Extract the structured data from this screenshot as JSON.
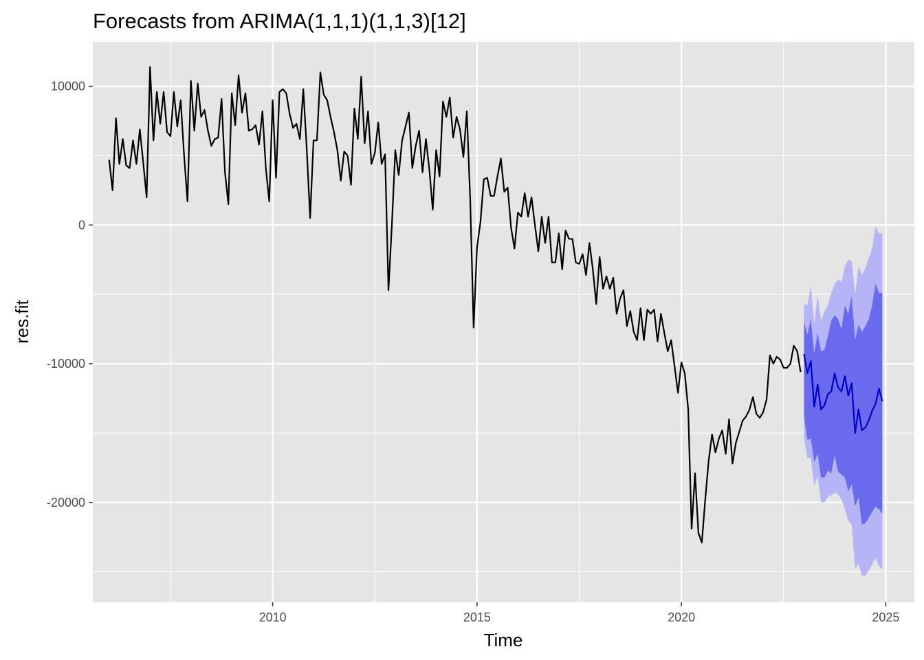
{
  "chart_data": {
    "type": "line",
    "title": "Forecasts from ARIMA(1,1,1)(1,1,3)[12]",
    "xlabel": "Time",
    "ylabel": "res.fit",
    "xlim": [
      2005.6,
      2025.7
    ],
    "ylim": [
      -27200,
      13200
    ],
    "x_ticks": [
      2010,
      2015,
      2020,
      2025
    ],
    "x_tick_labels": [
      "2010",
      "2015",
      "2020",
      "2025"
    ],
    "y_ticks": [
      -20000,
      -10000,
      0,
      10000
    ],
    "y_tick_labels": [
      "-20000",
      "-10000",
      "0",
      "10000"
    ],
    "grid": true,
    "legend": "none",
    "colors": {
      "panel": "#e5e5e5",
      "grid": "#ffffff",
      "history": "#000000",
      "forecast": "#0000cc",
      "interval_80": "#6a6aee",
      "interval_95": "#b4b4f6"
    },
    "history": {
      "start": 2006.0,
      "frequency": 12,
      "values": [
        4700,
        2500,
        7700,
        4400,
        6200,
        4300,
        4100,
        6100,
        4400,
        6900,
        4500,
        2000,
        11400,
        6100,
        9600,
        7300,
        9600,
        6700,
        6400,
        9600,
        7100,
        9000,
        5000,
        1700,
        10400,
        6800,
        10200,
        7800,
        8300,
        6800,
        5700,
        6200,
        6300,
        9100,
        3800,
        1500,
        9500,
        7200,
        10800,
        8100,
        9500,
        6800,
        6900,
        7200,
        5800,
        8200,
        4100,
        1700,
        9000,
        3400,
        9600,
        9800,
        9500,
        8000,
        7000,
        7300,
        6200,
        9800,
        5500,
        500,
        6100,
        6100,
        11000,
        9400,
        9000,
        7800,
        6700,
        5400,
        3200,
        5300,
        5000,
        2900,
        8400,
        6200,
        10700,
        5900,
        8200,
        4400,
        5200,
        7400,
        4400,
        5100,
        -4700,
        0,
        5400,
        3600,
        6100,
        7100,
        8100,
        4100,
        5700,
        6800,
        3800,
        6200,
        4000,
        1100,
        5400,
        3500,
        8900,
        7800,
        9200,
        6300,
        7800,
        6900,
        4900,
        8200,
        1800,
        -7400,
        -1600,
        200,
        3300,
        3400,
        2100,
        2100,
        3500,
        4800,
        2400,
        2700,
        -200,
        -1700,
        900,
        600,
        2300,
        600,
        2000,
        0,
        -1900,
        600,
        -1300,
        600,
        -2700,
        -2700,
        -600,
        -3200,
        -400,
        -1000,
        -1000,
        -2700,
        -2800,
        -2100,
        -3600,
        -1300,
        -3200,
        -5700,
        -2300,
        -4600,
        -3700,
        -4600,
        -3800,
        -6400,
        -5300,
        -4700,
        -7300,
        -6200,
        -7700,
        -8300,
        -6000,
        -8300,
        -6100,
        -6400,
        -6100,
        -8400,
        -6400,
        -7800,
        -9100,
        -8300,
        -10200,
        -12100,
        -9900,
        -10700,
        -13300,
        -21900,
        -17900,
        -22200,
        -22900,
        -19800,
        -17000,
        -15100,
        -16400,
        -15400,
        -14800,
        -16500,
        -14000,
        -17200,
        -15700,
        -14900,
        -14100,
        -13800,
        -13300,
        -12400,
        -13600,
        -13900,
        -13500,
        -12600,
        -9400,
        -10000,
        -9500,
        -9700,
        -10300,
        -10300,
        -10000,
        -8700,
        -9100,
        -10600
      ]
    },
    "forecast": {
      "start": 2023.0,
      "frequency": 12,
      "mean": [
        -9300,
        -10700,
        -9800,
        -13100,
        -11500,
        -13300,
        -13000,
        -12200,
        -12000,
        -10700,
        -11700,
        -12000,
        -10900,
        -12300,
        -11400,
        -15000,
        -13300,
        -14800,
        -14600,
        -14100,
        -13400,
        -12900,
        -11800,
        -12700
      ],
      "lo80": [
        -13800,
        -15500,
        -15400,
        -17100,
        -16500,
        -18200,
        -18200,
        -17700,
        -17900,
        -16600,
        -17800,
        -18000,
        -18200,
        -19200,
        -18700,
        -20300,
        -19600,
        -21600,
        -21500,
        -21100,
        -20700,
        -20300,
        -20500,
        -20800
      ],
      "hi80": [
        -7000,
        -7900,
        -6800,
        -9300,
        -7800,
        -9100,
        -9000,
        -8000,
        -6900,
        -6500,
        -6800,
        -7500,
        -5800,
        -6400,
        -5100,
        -8300,
        -7200,
        -7700,
        -7300,
        -6800,
        -5800,
        -4200,
        -4900,
        -4900
      ],
      "lo95": [
        -15400,
        -16800,
        -16800,
        -18800,
        -18100,
        -20000,
        -20000,
        -19600,
        -19500,
        -19300,
        -19400,
        -19800,
        -20500,
        -21300,
        -21600,
        -24800,
        -24400,
        -25300,
        -25300,
        -24900,
        -24500,
        -24000,
        -24600,
        -24800
      ],
      "hi95": [
        -5700,
        -5800,
        -4400,
        -7100,
        -5100,
        -6900,
        -6200,
        -5800,
        -4900,
        -4300,
        -3900,
        -4100,
        -3000,
        -2500,
        -2600,
        -5000,
        -3000,
        -3600,
        -3100,
        -2400,
        -1700,
        -100,
        -600,
        -600
      ]
    }
  }
}
